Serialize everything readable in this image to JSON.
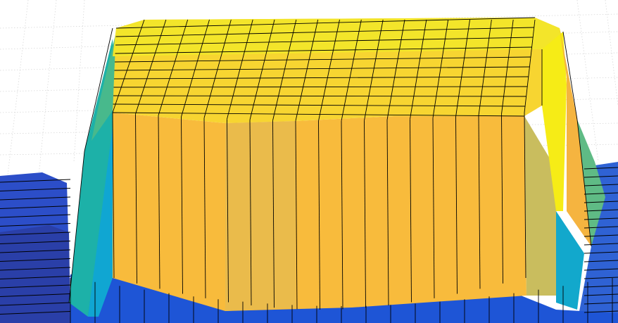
{
  "chart_data": {
    "type": "surface",
    "colormap": "parula",
    "colormap_stops": [
      "#352a87",
      "#0f5cdd",
      "#1481d6",
      "#06a4ca",
      "#2eb7a4",
      "#87bf77",
      "#d1bb59",
      "#fec832",
      "#f9fb0e"
    ],
    "grid": true,
    "z_profile": {
      "base": 0.12,
      "plateau": 0.82,
      "plateau_top_ridge": 0.95
    }
  }
}
